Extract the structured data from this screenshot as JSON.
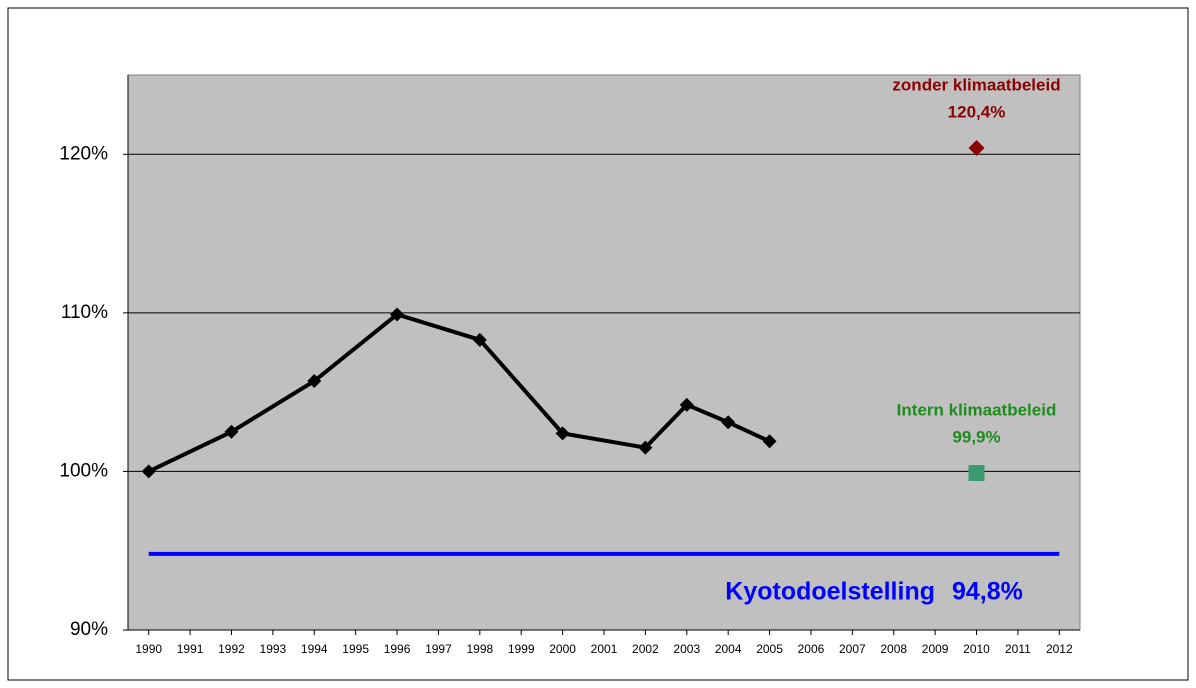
{
  "chart_data": {
    "type": "line",
    "xlim": [
      1989.5,
      2012.5
    ],
    "xticks": [
      1990,
      1991,
      1992,
      1993,
      1994,
      1995,
      1996,
      1997,
      1998,
      1999,
      2000,
      2001,
      2002,
      2003,
      2004,
      2005,
      2006,
      2007,
      2008,
      2009,
      2010,
      2011,
      2012
    ],
    "ylim": [
      90,
      125
    ],
    "yticks": [
      {
        "value": 90,
        "label": "90%"
      },
      {
        "value": 100,
        "label": "100%"
      },
      {
        "value": 110,
        "label": "110%"
      },
      {
        "value": 120,
        "label": "120%"
      }
    ],
    "grid": true,
    "series": [
      {
        "color": "#000000",
        "x": [
          1990,
          1992,
          1994,
          1996,
          1998,
          2000,
          2002,
          2003,
          2004,
          2005
        ],
        "values": [
          100,
          102.5,
          105.7,
          109.9,
          108.3,
          102.4,
          101.5,
          104.2,
          103.1,
          101.9
        ]
      }
    ],
    "points": [
      {
        "name": "zonder klimaatbeleid",
        "x": 2010,
        "value": 120.4,
        "value_label": "120,4%",
        "color": "#8b0000",
        "marker": "diamond"
      },
      {
        "name": "Intern klimaatbeleid",
        "x": 2010,
        "value": 99.9,
        "value_label": "99,9%",
        "color": "#3c9b6e",
        "label_color": "#1e8c1e",
        "marker": "square"
      }
    ],
    "target": {
      "name": "Kyotodoelstelling",
      "x": [
        1990,
        2012
      ],
      "value": 94.8,
      "value_label": "94,8%",
      "color": "#0000ff"
    }
  }
}
